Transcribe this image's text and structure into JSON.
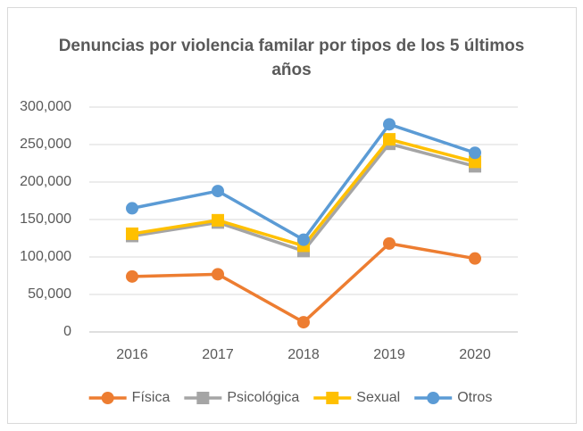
{
  "chart_data": {
    "type": "line",
    "title": "Denuncias por violencia familar por tipos de los 5 últimos años",
    "categories": [
      "2016",
      "2017",
      "2018",
      "2019",
      "2020"
    ],
    "series": [
      {
        "name": "Física",
        "color": "#ed7d31",
        "marker": "circle",
        "values": [
          74000,
          77000,
          13000,
          118000,
          98000
        ]
      },
      {
        "name": "Psicológica",
        "color": "#a5a5a5",
        "marker": "square",
        "values": [
          128000,
          146000,
          108000,
          251000,
          221000
        ]
      },
      {
        "name": "Sexual",
        "color": "#ffc000",
        "marker": "square",
        "values": [
          131000,
          149000,
          115000,
          257000,
          227000
        ]
      },
      {
        "name": "Otros",
        "color": "#5b9bd5",
        "marker": "circle",
        "values": [
          165000,
          188000,
          123000,
          277000,
          239000
        ]
      }
    ],
    "ylim": [
      0,
      300000
    ],
    "yticks": [
      0,
      {
        "value": 50000,
        "label": "50,000"
      },
      {
        "value": 100000,
        "label": "100,000"
      },
      {
        "value": 150000,
        "label": "150,000"
      },
      {
        "value": 200000,
        "label": "200,000"
      },
      {
        "value": 250000,
        "label": "250,000"
      },
      {
        "value": 300000,
        "label": "300,000"
      }
    ],
    "grid": true,
    "legend": "bottom"
  }
}
